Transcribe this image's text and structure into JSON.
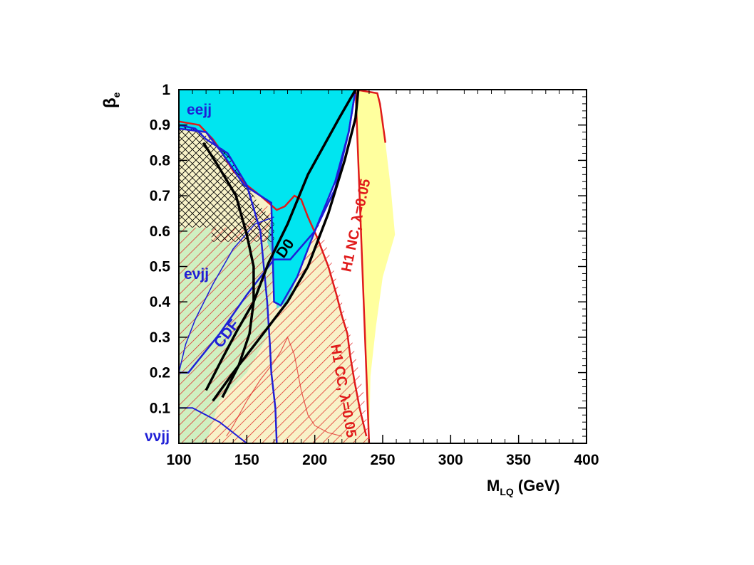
{
  "chart_data": {
    "type": "area",
    "title": "",
    "xlabel": {
      "main": "M",
      "sub": "LQ",
      "unit": " (GeV)"
    },
    "ylabel": {
      "main": "β",
      "sub": "e"
    },
    "xlim": [
      100,
      400
    ],
    "ylim": [
      0,
      1
    ],
    "x_ticks": [
      "100",
      "150",
      "200",
      "250",
      "300",
      "350",
      "400"
    ],
    "y_ticks": [
      "0.1",
      "0.2",
      "0.3",
      "0.4",
      "0.5",
      "0.6",
      "0.7",
      "0.8",
      "0.9",
      "1"
    ],
    "colors": {
      "cyan": "#00e5f0",
      "yellow": "#ffff9e",
      "red": "#e01b1b",
      "blue": "#1f1fd6",
      "black": "#000000",
      "green_tint": "#c8f0c0",
      "teal_tint": "#50dcd8"
    },
    "series": [
      {
        "name": "H1 NC, λ=0.05",
        "style": "yellow-filled-red-boundary",
        "points": [
          [
            100,
            0.91
          ],
          [
            115,
            0.9
          ],
          [
            125,
            0.86
          ],
          [
            132,
            0.82
          ],
          [
            140,
            0.77
          ],
          [
            150,
            0.73
          ],
          [
            160,
            0.7
          ],
          [
            172,
            0.66
          ],
          [
            178,
            0.67
          ],
          [
            185,
            0.7
          ],
          [
            190,
            0.69
          ],
          [
            195,
            0.64
          ],
          [
            202,
            0.58
          ],
          [
            210,
            0.5
          ],
          [
            216,
            0.42
          ],
          [
            220,
            0.36
          ],
          [
            224,
            0.31
          ],
          [
            226,
            0.25
          ],
          [
            229,
            0.18
          ],
          [
            233,
            0.1
          ],
          [
            238,
            0.02
          ],
          [
            240,
            0.0
          ],
          [
            230,
            1.0
          ],
          [
            246,
            0.99
          ],
          [
            248,
            0.96
          ],
          [
            252,
            0.85
          ],
          [
            256,
            0.72
          ],
          [
            259,
            0.59
          ],
          [
            250,
            0.47
          ],
          [
            245,
            0.33
          ],
          [
            241,
            0.19
          ],
          [
            240,
            0.0
          ]
        ]
      },
      {
        "name": "H1 CC, λ=0.05",
        "style": "red-hatched",
        "points": [
          [
            100,
            0.61
          ],
          [
            100,
            0.0
          ],
          [
            240,
            0.0
          ],
          [
            236,
            0.14
          ],
          [
            228,
            0.28
          ],
          [
            220,
            0.4
          ],
          [
            212,
            0.52
          ],
          [
            205,
            0.6
          ],
          [
            195,
            0.69
          ],
          [
            180,
            0.69
          ],
          [
            165,
            0.67
          ],
          [
            145,
            0.61
          ],
          [
            125,
            0.61
          ]
        ]
      },
      {
        "name": "eejj",
        "style": "cyan-filled-blue-boundary",
        "points": [
          [
            100,
            1.0
          ],
          [
            230,
            1.0
          ],
          [
            225,
            0.88
          ],
          [
            215,
            0.74
          ],
          [
            200,
            0.6
          ],
          [
            187,
            0.47
          ],
          [
            175,
            0.39
          ],
          [
            170,
            0.4
          ],
          [
            168,
            0.68
          ],
          [
            160,
            0.7
          ],
          [
            148,
            0.73
          ],
          [
            132,
            0.82
          ],
          [
            120,
            0.88
          ],
          [
            100,
            0.89
          ]
        ]
      },
      {
        "name": "eνjj",
        "style": "blue-boundary",
        "points": [
          [
            100,
            0.9
          ],
          [
            112,
            0.89
          ],
          [
            120,
            0.86
          ],
          [
            136,
            0.82
          ],
          [
            150,
            0.73
          ],
          [
            160,
            0.6
          ],
          [
            165,
            0.4
          ],
          [
            167,
            0.28
          ],
          [
            168,
            0.2
          ],
          [
            171,
            0.1
          ],
          [
            172,
            0.0
          ]
        ]
      },
      {
        "name": "ννjj",
        "style": "blue-boundary",
        "points": [
          [
            100,
            0.2
          ],
          [
            107,
            0.2
          ],
          [
            130,
            0.31
          ],
          [
            150,
            0.42
          ],
          [
            170,
            0.52
          ],
          [
            182,
            0.52
          ],
          [
            200,
            0.6
          ],
          [
            215,
            0.72
          ],
          [
            225,
            0.88
          ],
          [
            230,
            1.0
          ]
        ]
      },
      {
        "name": "CDF",
        "style": "black-line",
        "points": [
          [
            120,
            0.15
          ],
          [
            132,
            0.24
          ],
          [
            143,
            0.32
          ],
          [
            155,
            0.4
          ],
          [
            166,
            0.51
          ],
          [
            180,
            0.62
          ],
          [
            195,
            0.76
          ],
          [
            218,
            0.92
          ],
          [
            230,
            1.0
          ]
        ]
      },
      {
        "name": "D0",
        "style": "black-line",
        "points": [
          [
            118,
            0.85
          ],
          [
            128,
            0.79
          ],
          [
            142,
            0.7
          ],
          [
            150,
            0.59
          ],
          [
            155,
            0.5
          ],
          [
            155,
            0.4
          ],
          [
            152,
            0.31
          ],
          [
            144,
            0.22
          ],
          [
            132,
            0.13
          ]
        ]
      }
    ],
    "labels": {
      "eejj": "eejj",
      "evjj": "eνjj",
      "vvjj": "ννjj",
      "cdf": "CDF",
      "d0": "D0",
      "h1nc": "H1 NC, λ=0.05",
      "h1cc": "H1 CC, λ=0.05"
    },
    "grid": false,
    "legend": "none"
  }
}
